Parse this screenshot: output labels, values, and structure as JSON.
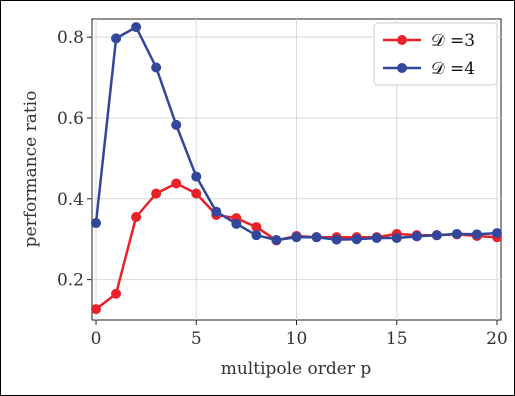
{
  "chart_data": {
    "type": "line",
    "xlabel": "multipole order p",
    "ylabel": "performance ratio",
    "xlim": [
      -0.2,
      20.2
    ],
    "ylim": [
      0.1,
      0.845
    ],
    "xticks": [
      0,
      5,
      10,
      15,
      20
    ],
    "yticks": [
      0.2,
      0.4,
      0.6,
      0.8
    ],
    "xtick_labels": [
      "0",
      "5",
      "10",
      "15",
      "20"
    ],
    "ytick_labels": [
      "0.2",
      "0.4",
      "0.6",
      "0.8"
    ],
    "grid": true,
    "legend_position": "top-right",
    "x": [
      0,
      1,
      2,
      3,
      4,
      5,
      6,
      7,
      8,
      9,
      10,
      11,
      12,
      13,
      14,
      15,
      16,
      17,
      18,
      19,
      20
    ],
    "series": [
      {
        "name": "𝒟 =3",
        "color": "#e8212a",
        "values": [
          0.127,
          0.165,
          0.355,
          0.413,
          0.438,
          0.413,
          0.36,
          0.352,
          0.33,
          0.297,
          0.308,
          0.305,
          0.305,
          0.305,
          0.305,
          0.313,
          0.31,
          0.31,
          0.312,
          0.308,
          0.305
        ]
      },
      {
        "name": "𝒟 =4",
        "color": "#32469b",
        "values": [
          0.34,
          0.797,
          0.825,
          0.725,
          0.583,
          0.455,
          0.368,
          0.338,
          0.31,
          0.298,
          0.305,
          0.305,
          0.299,
          0.3,
          0.303,
          0.303,
          0.307,
          0.31,
          0.313,
          0.312,
          0.315
        ]
      }
    ]
  }
}
